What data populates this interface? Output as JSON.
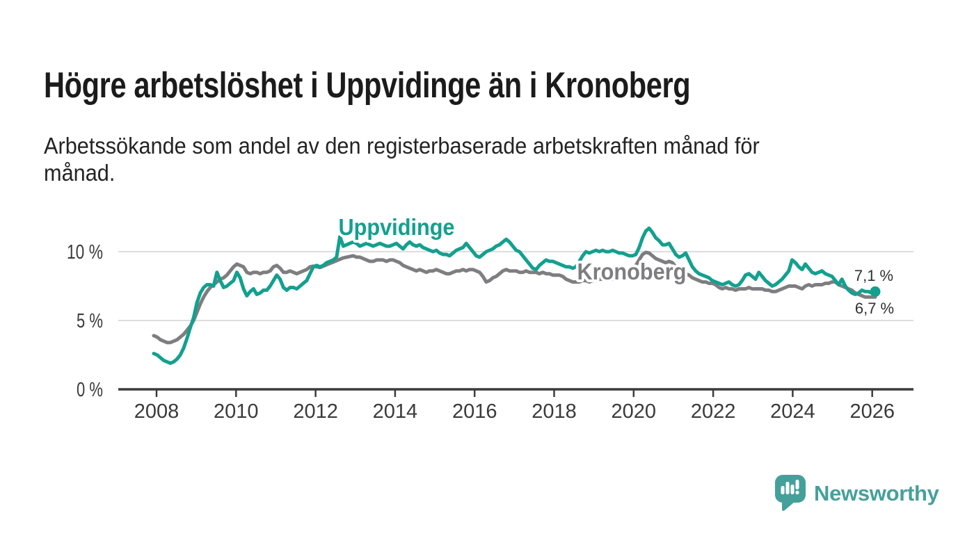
{
  "header": {
    "title": "Högre arbetslöshet i Uppvidinge än i Kronoberg",
    "subtitle_lines": [
      "Arbetssökande som andel av den registerbaserade arbetskraften månad för",
      "månad."
    ]
  },
  "branding": {
    "logo_text": "Newsworthy",
    "logo_icon": "bar-chart-speech-bubble",
    "brand_color": "#45a09b"
  },
  "chart_data": {
    "type": "line",
    "frequency": "monthly",
    "start": "2008-01",
    "end": "2026-02",
    "unit": "%",
    "decimal_style": "comma",
    "grid": "horizontal",
    "ylim": [
      0,
      12.5
    ],
    "y_ticks": [
      {
        "value": 0,
        "label": "0 %"
      },
      {
        "value": 5,
        "label": "5 %"
      },
      {
        "value": 10,
        "label": "10 %"
      }
    ],
    "x_ticks": [
      {
        "year": 2008,
        "label": "2008"
      },
      {
        "year": 2010,
        "label": "2010"
      },
      {
        "year": 2012,
        "label": "2012"
      },
      {
        "year": 2014,
        "label": "2014"
      },
      {
        "year": 2016,
        "label": "2016"
      },
      {
        "year": 2018,
        "label": "2018"
      },
      {
        "year": 2020,
        "label": "2020"
      },
      {
        "year": 2022,
        "label": "2022"
      },
      {
        "year": 2024,
        "label": "2024"
      },
      {
        "year": 2026,
        "label": "2026"
      }
    ],
    "series": [
      {
        "name": "Uppvidinge",
        "color": "#13a08f",
        "end_label": "7,1 %",
        "end_value": 7.1,
        "end_dot": true,
        "values": [
          2.6,
          2.5,
          2.3,
          2.1,
          2.0,
          1.9,
          2.0,
          2.2,
          2.5,
          3.0,
          3.7,
          4.5,
          5.2,
          6.3,
          7.0,
          7.4,
          7.6,
          7.6,
          7.5,
          8.5,
          7.9,
          7.4,
          7.5,
          7.7,
          7.9,
          8.5,
          8.1,
          7.3,
          6.8,
          7.1,
          7.3,
          6.9,
          7.0,
          7.2,
          7.2,
          7.5,
          7.9,
          8.3,
          8.0,
          7.4,
          7.2,
          7.4,
          7.4,
          7.3,
          7.5,
          7.7,
          7.9,
          8.4,
          8.9,
          9.0,
          8.9,
          9.0,
          9.2,
          9.3,
          9.4,
          9.6,
          11.1,
          10.4,
          10.5,
          10.6,
          10.7,
          10.6,
          10.4,
          10.5,
          10.6,
          10.5,
          10.4,
          10.5,
          10.6,
          10.5,
          10.4,
          10.4,
          10.5,
          10.6,
          10.4,
          10.2,
          10.5,
          10.7,
          10.5,
          10.4,
          10.5,
          10.3,
          10.2,
          10.1,
          10.0,
          10.1,
          9.9,
          9.8,
          9.8,
          9.7,
          9.9,
          10.1,
          10.2,
          10.3,
          10.6,
          10.3,
          10.0,
          9.7,
          9.6,
          9.8,
          10.0,
          10.1,
          10.2,
          10.4,
          10.5,
          10.7,
          10.9,
          10.7,
          10.4,
          10.1,
          10.0,
          9.7,
          9.4,
          9.1,
          8.8,
          8.7,
          9.0,
          9.2,
          9.4,
          9.3,
          9.3,
          9.2,
          9.1,
          9.0,
          8.9,
          8.9,
          8.8,
          8.9,
          9.3,
          9.7,
          10.0,
          9.9,
          10.0,
          10.1,
          10.0,
          10.1,
          10.0,
          10.0,
          10.1,
          10.0,
          9.9,
          9.9,
          9.8,
          9.7,
          9.7,
          9.8,
          10.3,
          11.0,
          11.5,
          11.7,
          11.4,
          11.0,
          10.8,
          10.5,
          10.5,
          10.6,
          10.2,
          9.8,
          9.6,
          9.7,
          9.9,
          9.4,
          8.9,
          8.6,
          8.4,
          8.3,
          8.2,
          8.1,
          7.9,
          7.8,
          7.7,
          7.6,
          7.7,
          7.8,
          7.6,
          7.5,
          7.6,
          7.9,
          8.3,
          8.4,
          8.2,
          8.0,
          8.5,
          8.2,
          7.9,
          7.7,
          7.5,
          7.6,
          7.8,
          8.0,
          8.3,
          8.6,
          9.4,
          9.2,
          8.9,
          8.7,
          9.1,
          8.8,
          8.5,
          8.4,
          8.5,
          8.6,
          8.4,
          8.3,
          8.2,
          7.9,
          7.6,
          8.0,
          7.5,
          7.2,
          7.0,
          6.9,
          7.0,
          7.2,
          7.1,
          7.1,
          7.0,
          7.1
        ]
      },
      {
        "name": "Kronoberg",
        "color": "#7e7e80",
        "end_label": "6,7 %",
        "end_value": 6.7,
        "end_dot": false,
        "values": [
          3.9,
          3.8,
          3.6,
          3.5,
          3.4,
          3.4,
          3.5,
          3.6,
          3.8,
          4.0,
          4.3,
          4.6,
          5.0,
          5.6,
          6.2,
          6.7,
          7.1,
          7.4,
          7.6,
          7.8,
          8.0,
          8.1,
          8.3,
          8.6,
          8.9,
          9.1,
          9.0,
          8.9,
          8.5,
          8.4,
          8.5,
          8.5,
          8.4,
          8.5,
          8.5,
          8.6,
          8.9,
          9.0,
          8.8,
          8.5,
          8.5,
          8.6,
          8.5,
          8.4,
          8.5,
          8.6,
          8.7,
          8.9,
          8.95,
          8.9,
          8.85,
          8.95,
          9.05,
          9.15,
          9.25,
          9.35,
          9.45,
          9.55,
          9.6,
          9.65,
          9.7,
          9.6,
          9.6,
          9.5,
          9.4,
          9.3,
          9.3,
          9.4,
          9.4,
          9.4,
          9.3,
          9.4,
          9.4,
          9.3,
          9.2,
          9.0,
          8.9,
          8.8,
          8.7,
          8.6,
          8.7,
          8.6,
          8.5,
          8.6,
          8.6,
          8.7,
          8.6,
          8.5,
          8.4,
          8.4,
          8.5,
          8.6,
          8.6,
          8.7,
          8.6,
          8.7,
          8.7,
          8.6,
          8.5,
          8.2,
          7.8,
          7.9,
          8.1,
          8.2,
          8.4,
          8.6,
          8.7,
          8.6,
          8.6,
          8.6,
          8.5,
          8.5,
          8.6,
          8.5,
          8.5,
          8.5,
          8.4,
          8.5,
          8.4,
          8.4,
          8.3,
          8.3,
          8.3,
          8.2,
          8.0,
          7.9,
          7.8,
          7.8,
          7.8,
          7.9,
          7.9,
          7.8,
          7.9,
          7.9,
          8.0,
          8.0,
          8.0,
          8.0,
          8.0,
          8.1,
          8.1,
          8.2,
          8.3,
          8.5,
          8.7,
          9.0,
          9.4,
          9.8,
          9.95,
          9.9,
          9.7,
          9.5,
          9.4,
          9.3,
          9.2,
          9.3,
          9.2,
          8.9,
          8.6,
          8.5,
          8.4,
          8.3,
          8.1,
          8.0,
          7.9,
          7.8,
          7.8,
          7.7,
          7.7,
          7.6,
          7.4,
          7.3,
          7.4,
          7.3,
          7.3,
          7.2,
          7.3,
          7.3,
          7.3,
          7.4,
          7.3,
          7.3,
          7.3,
          7.3,
          7.2,
          7.2,
          7.1,
          7.1,
          7.2,
          7.3,
          7.4,
          7.5,
          7.5,
          7.5,
          7.4,
          7.3,
          7.5,
          7.6,
          7.5,
          7.6,
          7.6,
          7.6,
          7.7,
          7.7,
          7.8,
          7.8,
          7.6,
          7.5,
          7.4,
          7.3,
          7.2,
          7.0,
          6.9,
          6.8,
          6.7,
          6.7,
          6.7,
          6.7
        ]
      }
    ]
  }
}
